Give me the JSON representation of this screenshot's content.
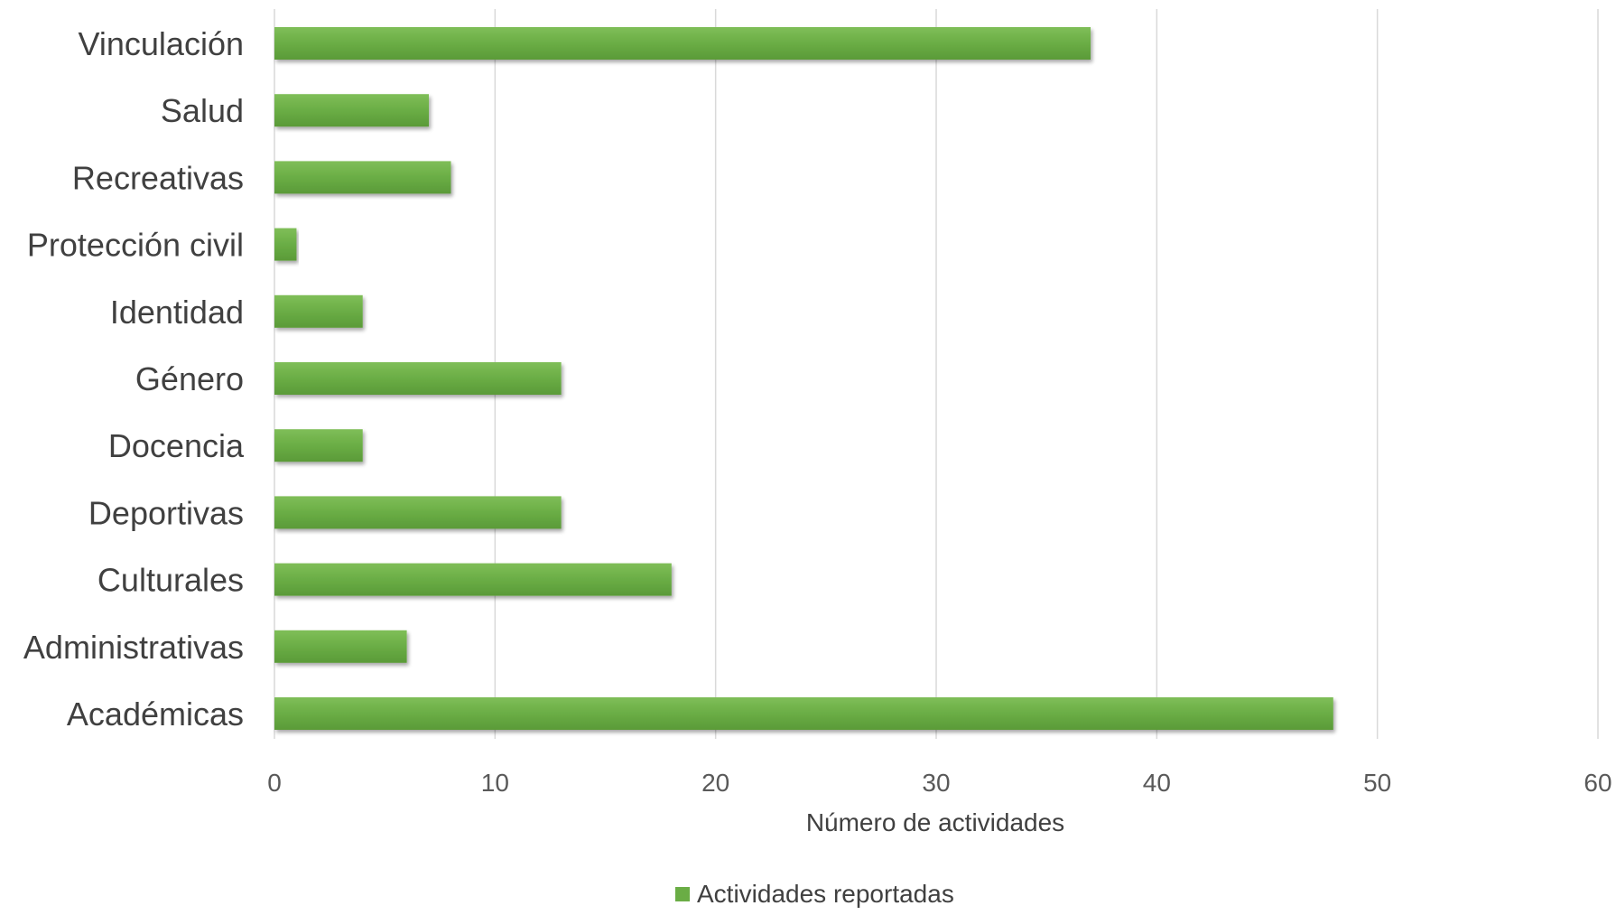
{
  "chart_data": {
    "type": "bar",
    "orientation": "horizontal",
    "categories": [
      "Vinculación",
      "Salud",
      "Recreativas",
      "Protección civil",
      "Identidad",
      "Género",
      "Docencia",
      "Deportivas",
      "Culturales",
      "Administrativas",
      "Académicas"
    ],
    "series": [
      {
        "name": "Actividades reportadas",
        "values": [
          37,
          7,
          8,
          1,
          4,
          13,
          4,
          13,
          18,
          6,
          48
        ],
        "color": "#6aad45"
      }
    ],
    "xlabel": "Número de actividades",
    "ylabel": "",
    "xlim": [
      0,
      60
    ],
    "xticks": [
      "0",
      "10",
      "20",
      "30",
      "40",
      "50",
      "60"
    ],
    "grid": "vertical",
    "legend_position": "bottom-center",
    "colors": {
      "bar": "#6aad45",
      "bar_highlight": "#8bc865",
      "bar_shadow": "#4f8a2f",
      "gridline": "#d9d9d9",
      "axis_text": "#595959",
      "category_text": "#404040"
    }
  }
}
